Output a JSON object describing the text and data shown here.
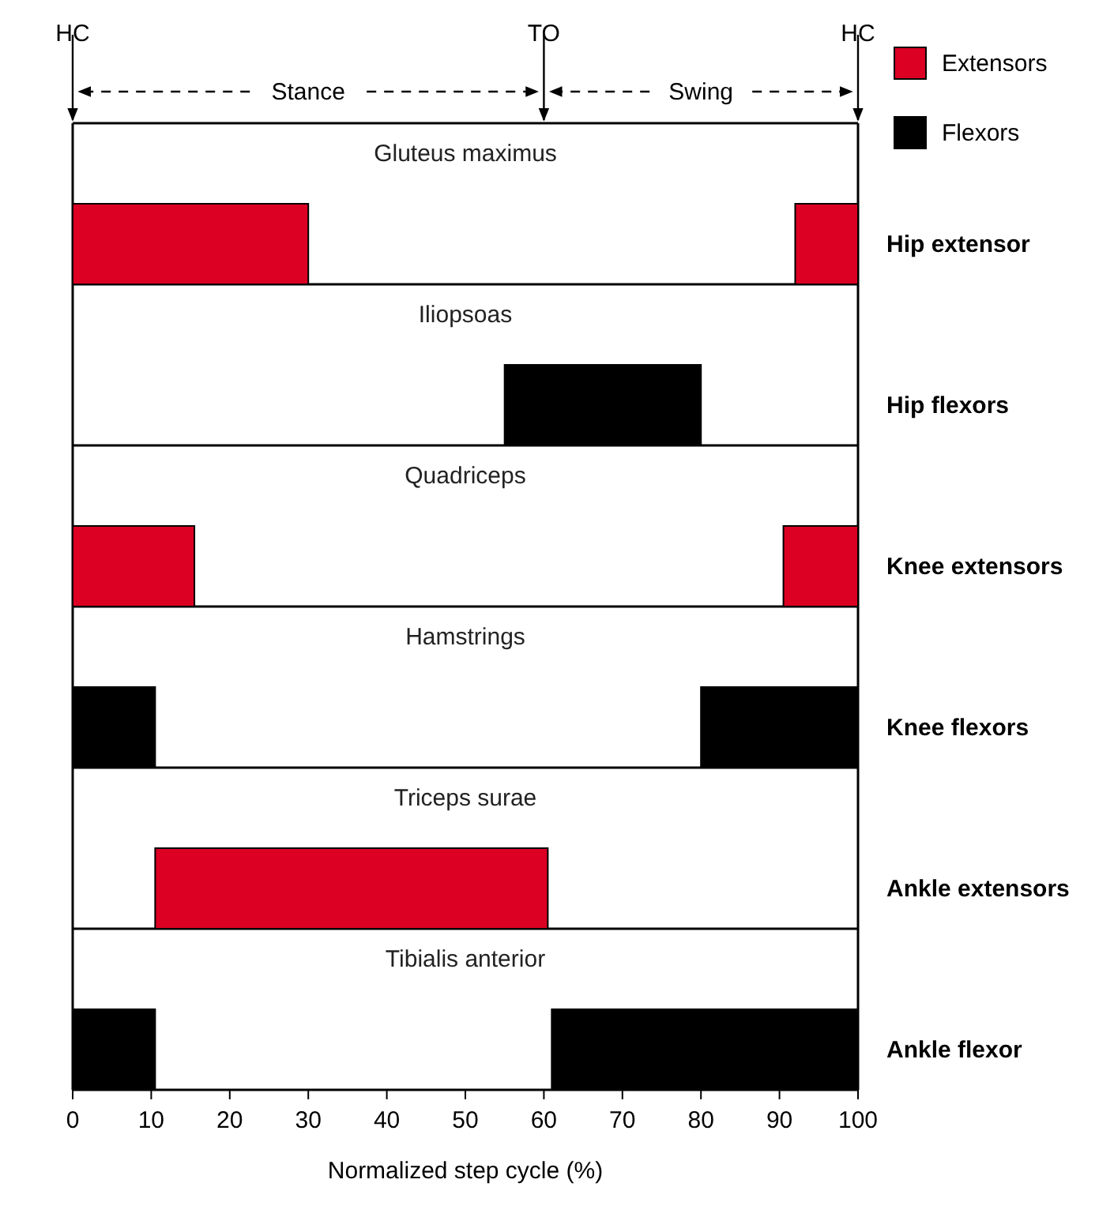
{
  "chart_data": {
    "type": "bar",
    "orientation": "horizontal",
    "xlabel": "Normalized step cycle (%)",
    "categories": [
      "Hip extensor",
      "Hip flexors",
      "Knee extensors",
      "Knee flexors",
      "Ankle extensors",
      "Ankle flexor"
    ],
    "series": [
      {
        "name": "Extensors",
        "color": "#dc0022",
        "base": [
          0,
          null,
          0,
          null,
          10.5,
          null
        ],
        "values": [
          30,
          null,
          15.5,
          null,
          50,
          null
        ]
      },
      {
        "color": "#dc0022",
        "base": [
          92,
          null,
          90.5,
          null,
          null,
          null
        ],
        "values": [
          8,
          null,
          9.5,
          null,
          null,
          null
        ]
      },
      {
        "name": "Flexors",
        "color": "#000000",
        "base": [
          null,
          55,
          null,
          0,
          null,
          0
        ],
        "values": [
          null,
          25,
          null,
          10.5,
          null,
          10.5
        ]
      },
      {
        "color": "#000000",
        "base": [
          null,
          null,
          null,
          80,
          null,
          61
        ],
        "values": [
          null,
          null,
          null,
          20,
          null,
          39
        ]
      }
    ],
    "xlim": [
      0,
      100
    ],
    "xticks": [
      0,
      10,
      20,
      30,
      40,
      50,
      60,
      70,
      80,
      90,
      100
    ],
    "ref_lines": [
      {
        "axis": "x",
        "value": 0,
        "label": "HC"
      },
      {
        "axis": "x",
        "value": 60,
        "label": "TO"
      },
      {
        "axis": "x",
        "value": 100,
        "label": "HC"
      }
    ],
    "annotations": [
      "Stance",
      "Swing",
      "Gluteus maximus",
      "Iliopsoas",
      "Quadriceps",
      "Hamstrings",
      "Triceps surae",
      "Tibialis anterior"
    ],
    "legend": "top right"
  }
}
